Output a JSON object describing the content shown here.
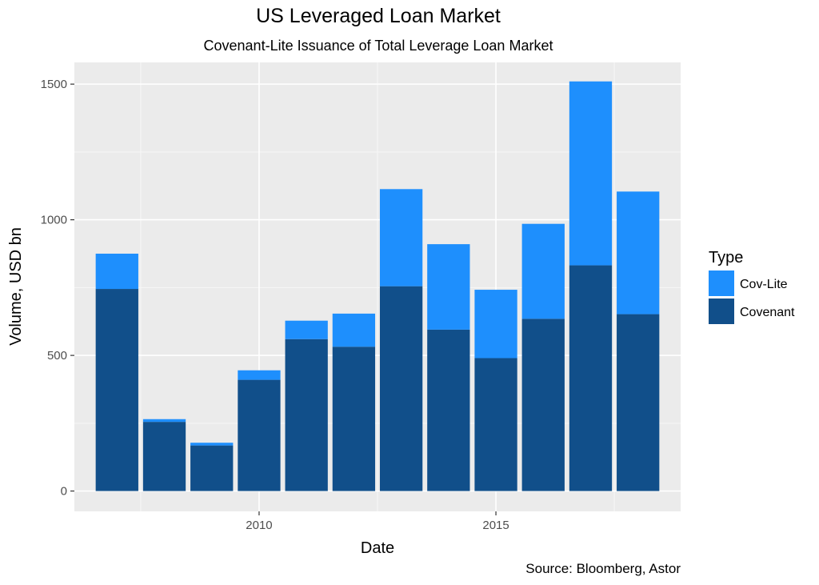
{
  "chart_data": {
    "type": "bar",
    "stacked": true,
    "title": "US Leveraged Loan Market",
    "subtitle": "Covenant-Lite Issuance of Total Leverage Loan Market",
    "xlabel": "Date",
    "ylabel": "Volume, USD bn",
    "caption": "Source: Bloomberg, Astor",
    "x": [
      2007,
      2008,
      2009,
      2010,
      2011,
      2012,
      2013,
      2014,
      2015,
      2016,
      2017,
      2018
    ],
    "xlim": [
      2006.1,
      2018.9
    ],
    "ylim": [
      -75,
      1580
    ],
    "x_ticks": [
      2010,
      2015
    ],
    "y_ticks": [
      0,
      500,
      1000,
      1500
    ],
    "grid": true,
    "legend": {
      "title": "Type",
      "position": "right"
    },
    "series": [
      {
        "name": "Covenant",
        "color": "#114f8a",
        "values": [
          745,
          255,
          168,
          410,
          560,
          532,
          755,
          595,
          490,
          635,
          832,
          652
        ]
      },
      {
        "name": "Cov-Lite",
        "color": "#1e8ffd",
        "values": [
          130,
          10,
          10,
          35,
          68,
          122,
          358,
          315,
          252,
          350,
          678,
          452
        ]
      }
    ]
  }
}
